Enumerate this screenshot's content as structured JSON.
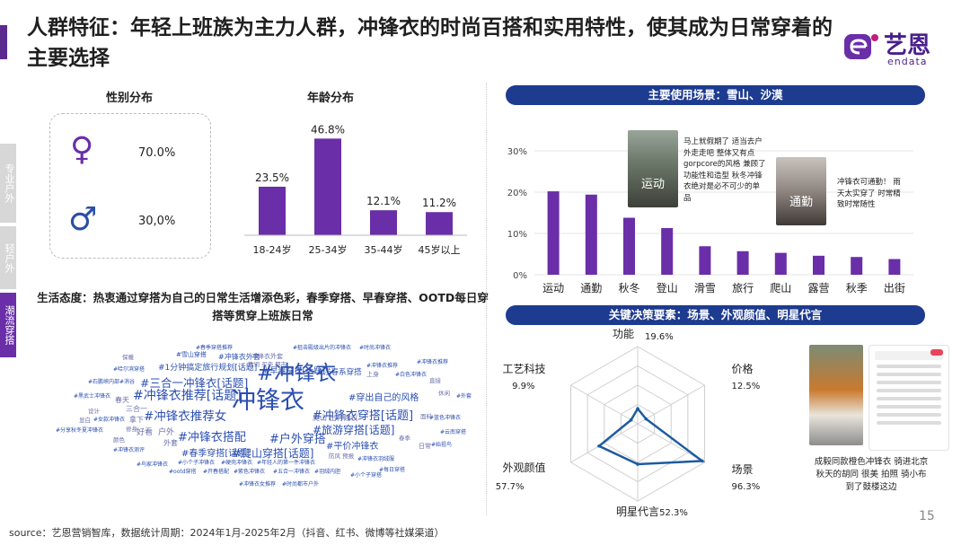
{
  "title": "人群特征：年轻上班族为主力人群，冲锋衣的时尚百搭和实用特性，使其成为日常穿着的主要选择",
  "logo": {
    "cn": "艺恩",
    "en": "endata"
  },
  "side_tabs": [
    "专业户外",
    "轻户外",
    "潮流穿搭"
  ],
  "gender": {
    "title": "性别分布",
    "female": {
      "icon": "female-icon",
      "value": "70.0%"
    },
    "male": {
      "icon": "male-icon",
      "value": "30,0%"
    }
  },
  "attitude": "生活态度：热衷通过穿搭为自己的日常生活增添色彩，春季穿搭、早春穿搭、OOTD每日穿搭等贯穿上班族日常",
  "wordcloud": [
    {
      "t": "冲锋衣",
      "x": 210,
      "y": 52,
      "s": 27,
      "c": "#2b4fb0"
    },
    {
      "t": "#冲锋衣",
      "x": 238,
      "y": 24,
      "s": 23,
      "c": "#2b4fb0"
    },
    {
      "t": "#三合一冲锋衣[话题]",
      "x": 108,
      "y": 44,
      "s": 12.5,
      "c": "#2b4fb0"
    },
    {
      "t": "#冲锋衣推荐[话题]",
      "x": 100,
      "y": 58,
      "s": 14,
      "c": "#2b4fb0"
    },
    {
      "t": "#冲锋衣推荐女",
      "x": 112,
      "y": 80,
      "s": 13.5,
      "c": "#2b4fb0"
    },
    {
      "t": "#冲锋衣搭配",
      "x": 150,
      "y": 104,
      "s": 13,
      "c": "#2b4fb0"
    },
    {
      "t": "#冲锋衣穿搭[话题]",
      "x": 300,
      "y": 80,
      "s": 13,
      "c": "#2b4fb0"
    },
    {
      "t": "#旅游穿搭[话题]",
      "x": 300,
      "y": 98,
      "s": 12,
      "c": "#2b4fb0"
    },
    {
      "t": "#户外穿搭",
      "x": 252,
      "y": 106,
      "s": 13,
      "c": "#2b4fb0"
    },
    {
      "t": "#爬山穿搭[话题]",
      "x": 210,
      "y": 124,
      "s": 12,
      "c": "#2b4fb0"
    },
    {
      "t": "#春季穿搭[话题]",
      "x": 154,
      "y": 124,
      "s": 10,
      "c": "#2b4fb0"
    },
    {
      "t": "#平价冲锋衣",
      "x": 315,
      "y": 116,
      "s": 10,
      "c": "#2b4fb0"
    },
    {
      "t": "#穿出自己的风格",
      "x": 340,
      "y": 62,
      "s": 10,
      "c": "#2b4fb0"
    },
    {
      "t": "#早春穿搭[话题]",
      "x": 245,
      "y": 34,
      "s": 9,
      "c": "#2b4fb0"
    },
    {
      "t": "#1分钟搞定旅行规划[话题]",
      "x": 128,
      "y": 30,
      "s": 9,
      "c": "#2b4fb0"
    },
    {
      "t": "#浅春系穿搭",
      "x": 305,
      "y": 36,
      "s": 8.5,
      "c": "#2b4fb0"
    },
    {
      "t": "#冲锋衣外套",
      "x": 195,
      "y": 20,
      "s": 8,
      "c": "#2b4fb0"
    },
    {
      "t": "#雪山穿搭",
      "x": 148,
      "y": 18,
      "s": 7,
      "c": "#2b4fb0"
    },
    {
      "t": "#春季穿搭推荐",
      "x": 170,
      "y": 10,
      "s": 6,
      "c": "#2b4fb0"
    },
    {
      "t": "#狙击殿级出片的冲锋衣",
      "x": 278,
      "y": 10,
      "s": 6,
      "c": "#2b4fb0"
    },
    {
      "t": "#哈尔滨穿搭",
      "x": 78,
      "y": 34,
      "s": 6,
      "c": "#2b4fb0"
    },
    {
      "t": "#石鹏峡内部#消谷",
      "x": 50,
      "y": 48,
      "s": 6,
      "c": "#2b4fb0"
    },
    {
      "t": "#黑武士冲锋衣",
      "x": 34,
      "y": 64,
      "s": 6,
      "c": "#2b4fb0"
    },
    {
      "t": "#女款冲锋衣",
      "x": 56,
      "y": 90,
      "s": 6,
      "c": "#2b4fb0"
    },
    {
      "t": "#分享秋冬夏冲锋衣",
      "x": 14,
      "y": 102,
      "s": 6,
      "c": "#2b4fb0"
    },
    {
      "t": "#冲锋衣测评",
      "x": 78,
      "y": 124,
      "s": 6,
      "c": "#2b4fb0"
    },
    {
      "t": "#鸟家冲锋衣",
      "x": 104,
      "y": 140,
      "s": 6,
      "c": "#2b4fb0"
    },
    {
      "t": "#ootd穿搭",
      "x": 140,
      "y": 148,
      "s": 6,
      "c": "#2b4fb0"
    },
    {
      "t": "#开春搭配",
      "x": 178,
      "y": 148,
      "s": 6,
      "c": "#2b4fb0"
    },
    {
      "t": "#紫色冲锋衣",
      "x": 212,
      "y": 148,
      "s": 6,
      "c": "#2b4fb0"
    },
    {
      "t": "#五合一冲锋衣",
      "x": 256,
      "y": 148,
      "s": 6,
      "c": "#2b4fb0"
    },
    {
      "t": "#羽绒内胆",
      "x": 302,
      "y": 148,
      "s": 6,
      "c": "#2b4fb0"
    },
    {
      "t": "#小个子冲锋衣",
      "x": 150,
      "y": 138,
      "s": 6,
      "c": "#2b4fb0"
    },
    {
      "t": "#硬壳冲锋衣",
      "x": 198,
      "y": 138,
      "s": 6,
      "c": "#2b4fb0"
    },
    {
      "t": "#年轻人的第一件冲锋衣",
      "x": 238,
      "y": 138,
      "s": 6,
      "c": "#2b4fb0"
    },
    {
      "t": "#冲锋衣女推荐",
      "x": 218,
      "y": 162,
      "s": 6,
      "c": "#2b4fb0"
    },
    {
      "t": "#时尚都市户外",
      "x": 266,
      "y": 162,
      "s": 6,
      "c": "#2b4fb0"
    },
    {
      "t": "#小个子穿搭",
      "x": 342,
      "y": 152,
      "s": 6,
      "c": "#2b4fb0"
    },
    {
      "t": "#每日穿搭",
      "x": 374,
      "y": 146,
      "s": 6,
      "c": "#2b4fb0"
    },
    {
      "t": "#冲锋衣羽绒服",
      "x": 350,
      "y": 134,
      "s": 6,
      "c": "#2b4fb0"
    },
    {
      "t": "#冲锋衣推荐",
      "x": 360,
      "y": 30,
      "s": 6,
      "c": "#2b4fb0"
    },
    {
      "t": "#白色冲锋衣",
      "x": 392,
      "y": 40,
      "s": 6,
      "c": "#2b4fb0"
    },
    {
      "t": "#蓝色冲锋衣",
      "x": 430,
      "y": 88,
      "s": 6,
      "c": "#2b4fb0"
    },
    {
      "t": "#云南穿搭",
      "x": 442,
      "y": 104,
      "s": 6,
      "c": "#2b4fb0"
    },
    {
      "t": "#始祖鸟",
      "x": 432,
      "y": 118,
      "s": 6,
      "c": "#2b4fb0"
    },
    {
      "t": "#外套",
      "x": 460,
      "y": 64,
      "s": 6,
      "c": "#2b4fb0"
    },
    {
      "t": "#时尚冲锋衣",
      "x": 352,
      "y": 10,
      "s": 6,
      "c": "#2b4fb0"
    },
    {
      "t": "#冲锋衣推荐",
      "x": 416,
      "y": 26,
      "s": 6,
      "c": "#2b4fb0"
    },
    {
      "t": "冲锋衣外套",
      "x": 232,
      "y": 20,
      "s": 7,
      "c": "#6a6fa8"
    },
    {
      "t": "售词 买壳 都市",
      "x": 228,
      "y": 28,
      "s": 6.5,
      "c": "#6a6fa8"
    },
    {
      "t": "爬山 出行建议",
      "x": 300,
      "y": 88,
      "s": 8,
      "c": "#6a6fa8"
    },
    {
      "t": "春天",
      "x": 80,
      "y": 68,
      "s": 8,
      "c": "#6a6fa8"
    },
    {
      "t": "三合一",
      "x": 92,
      "y": 78,
      "s": 8,
      "c": "#6a6fa8"
    },
    {
      "t": "拿下",
      "x": 96,
      "y": 90,
      "s": 8,
      "c": "#6a6fa8"
    },
    {
      "t": "好看",
      "x": 104,
      "y": 102,
      "s": 9,
      "c": "#6a6fa8"
    },
    {
      "t": "户外",
      "x": 128,
      "y": 102,
      "s": 9,
      "c": "#6a6fa8"
    },
    {
      "t": "外套",
      "x": 134,
      "y": 116,
      "s": 8,
      "c": "#6a6fa8"
    },
    {
      "t": "防风 预报",
      "x": 318,
      "y": 130,
      "s": 6.5,
      "c": "#6a6fa8"
    },
    {
      "t": "上身",
      "x": 360,
      "y": 40,
      "s": 7,
      "c": "#6a6fa8"
    },
    {
      "t": "日常",
      "x": 418,
      "y": 120,
      "s": 7,
      "c": "#6a6fa8"
    },
    {
      "t": "直接",
      "x": 430,
      "y": 46,
      "s": 6.5,
      "c": "#6a6fa8"
    },
    {
      "t": "休闲",
      "x": 440,
      "y": 60,
      "s": 6.5,
      "c": "#6a6fa8"
    },
    {
      "t": "面料",
      "x": 420,
      "y": 86,
      "s": 6.5,
      "c": "#6a6fa8"
    },
    {
      "t": "设计",
      "x": 50,
      "y": 80,
      "s": 6.5,
      "c": "#6a6fa8"
    },
    {
      "t": "显白",
      "x": 40,
      "y": 90,
      "s": 6.5,
      "c": "#6a6fa8"
    },
    {
      "t": "修身",
      "x": 92,
      "y": 100,
      "s": 6.5,
      "c": "#6a6fa8"
    },
    {
      "t": "颜色",
      "x": 78,
      "y": 112,
      "s": 6.5,
      "c": "#6a6fa8"
    },
    {
      "t": "保暖",
      "x": 88,
      "y": 20,
      "s": 6.5,
      "c": "#6a6fa8"
    },
    {
      "t": "春季",
      "x": 396,
      "y": 110,
      "s": 6.5,
      "c": "#6a6fa8"
    }
  ],
  "scene_pill": "主要使用场景：雪山、沙漠",
  "scene_notes": {
    "note1": "马上就假期了 适当去户外走走吧 整体又有点gorpcore的风格 兼顾了功能性和造型 秋冬冲锋衣绝对是必不可少的单品",
    "tag1": "运动",
    "note2": "冲锋衣可通勤！ 雨天太实穿了 时常精致时常随性",
    "tag2": "通勤"
  },
  "decision_pill": "关键决策要素：场景、外观颜值、明星代言",
  "radar_note": "成毅同款橙色冲锋衣 骑进北京秋天的胡同 很美 拍照 骑小布到了鼓楼这边",
  "source": "source：艺恩营销智库，数据统计周期：2024年1月-2025年2月（抖音、红书、微博等社媒渠道）",
  "page_number": "15",
  "colors": {
    "purple": "#6a2ea8",
    "navy": "#1d3b8f",
    "radar_line": "#1d5b9f"
  },
  "chart_data": [
    {
      "type": "bar",
      "title": "年龄分布",
      "categories": [
        "18-24岁",
        "25-34岁",
        "35-44岁",
        "45岁以上"
      ],
      "values": [
        23.5,
        46.8,
        12.1,
        11.2
      ],
      "labels": [
        "23.5%",
        "46.8%",
        "12.1%",
        "11.2%"
      ],
      "ylim": [
        0,
        50
      ],
      "grid": false
    },
    {
      "type": "bar",
      "categories": [
        "运动",
        "通勤",
        "秋冬",
        "登山",
        "滑雪",
        "旅行",
        "爬山",
        "露营",
        "秋季",
        "出街"
      ],
      "values": [
        20.2,
        19.4,
        13.8,
        11.3,
        6.9,
        5.7,
        5.3,
        4.6,
        4.3,
        3.8
      ],
      "yticks": [
        "0%",
        "10%",
        "20%",
        "30%"
      ],
      "ylim": [
        0,
        30
      ],
      "grid": true
    },
    {
      "type": "radar",
      "axes": [
        "功能",
        "价格",
        "场景",
        "明星代言",
        "外观颜值",
        "工艺科技"
      ],
      "values": [
        19.6,
        12.5,
        96.3,
        52.3,
        57.7,
        9.9
      ],
      "labels": [
        "19.6%",
        "12.5%",
        "96.3%",
        "52.3%",
        "57.7%",
        "9.9%"
      ],
      "max": 100
    }
  ]
}
